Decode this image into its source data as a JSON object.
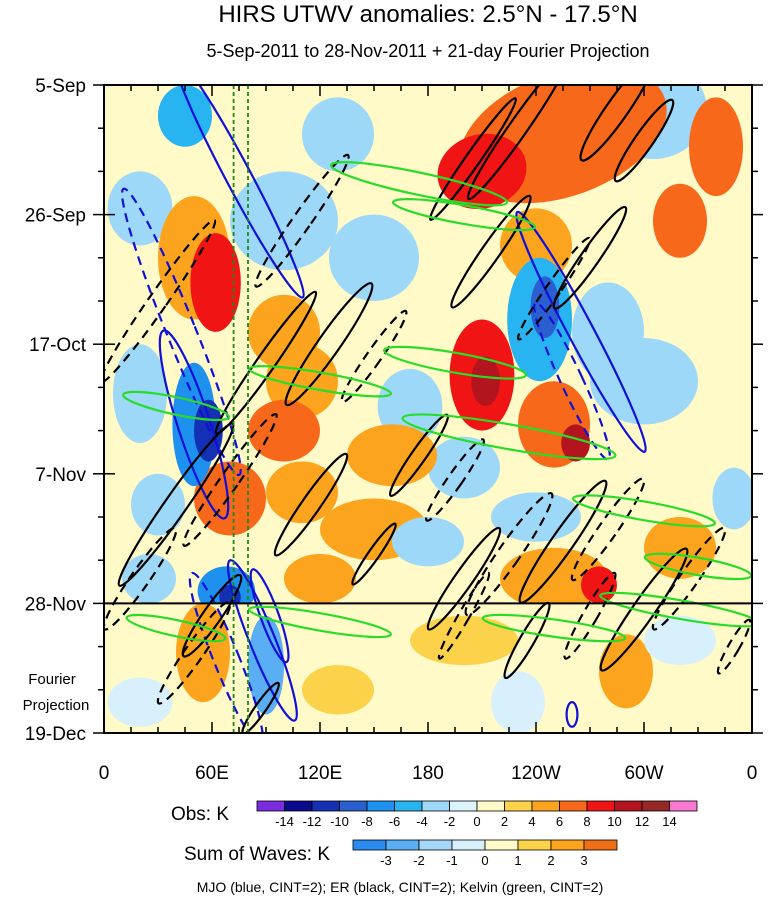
{
  "chart_data": {
    "type": "heatmap",
    "title": "HIRS UTWV anomalies: 2.5°N - 17.5°N",
    "subtitle": "5-Sep-2011 to 28-Nov-2011 + 21-day Fourier Projection",
    "xlabel": "",
    "ylabel": "",
    "x_ticks": [
      {
        "lon": 0,
        "label": "0"
      },
      {
        "lon": 60,
        "label": "60E"
      },
      {
        "lon": 120,
        "label": "120E"
      },
      {
        "lon": 180,
        "label": "180"
      },
      {
        "lon": 240,
        "label": "120W"
      },
      {
        "lon": 300,
        "label": "60W"
      },
      {
        "lon": 360,
        "label": "0"
      }
    ],
    "y_ticks": [
      {
        "day": 0,
        "label": "5-Sep"
      },
      {
        "day": 21,
        "label": "26-Sep"
      },
      {
        "day": 42,
        "label": "17-Oct"
      },
      {
        "day": 63,
        "label": "7-Nov"
      },
      {
        "day": 84,
        "label": "28-Nov"
      },
      {
        "day": 105,
        "label": "19-Dec"
      }
    ],
    "xlim": [
      0,
      360
    ],
    "ylim_days": [
      0,
      105
    ],
    "projection_start_day": 84,
    "projection_label": "Fourier Projection",
    "vertical_reference_lons": [
      72,
      80
    ],
    "obs_colorbar": {
      "label": "Obs: K",
      "levels": [
        "-14",
        "-12",
        "-10",
        "-8",
        "-6",
        "-4",
        "-2",
        "0",
        "2",
        "4",
        "6",
        "8",
        "10",
        "12",
        "14"
      ],
      "colors": [
        "#7b2be0",
        "#0a0a8c",
        "#1430b4",
        "#2a5fd0",
        "#1e90ee",
        "#28b4f0",
        "#9ed8f8",
        "#dcf4fc",
        "#fffac8",
        "#fcd24a",
        "#fca41e",
        "#f8681a",
        "#f01414",
        "#b4141e",
        "#962828",
        "#f878d2"
      ]
    },
    "waves_colorbar": {
      "label": "Sum of Waves: K",
      "levels": [
        "-3",
        "-2",
        "-1",
        "0",
        "1",
        "2",
        "3"
      ],
      "colors": [
        "#2a8cf0",
        "#5aaef4",
        "#a6d6fa",
        "#d8f0fc",
        "#fffac8",
        "#fcd24a",
        "#fca41e",
        "#f06e14"
      ]
    },
    "series": [
      {
        "name": "MJO",
        "color": "blue",
        "cint": 2
      },
      {
        "name": "ER",
        "color": "black",
        "cint": 2
      },
      {
        "name": "Kelvin",
        "color": "green",
        "cint": 2
      }
    ],
    "legend_text": "MJO (blue, CINT=2); ER (black, CINT=2); Kelvin (green, CINT=2)"
  }
}
